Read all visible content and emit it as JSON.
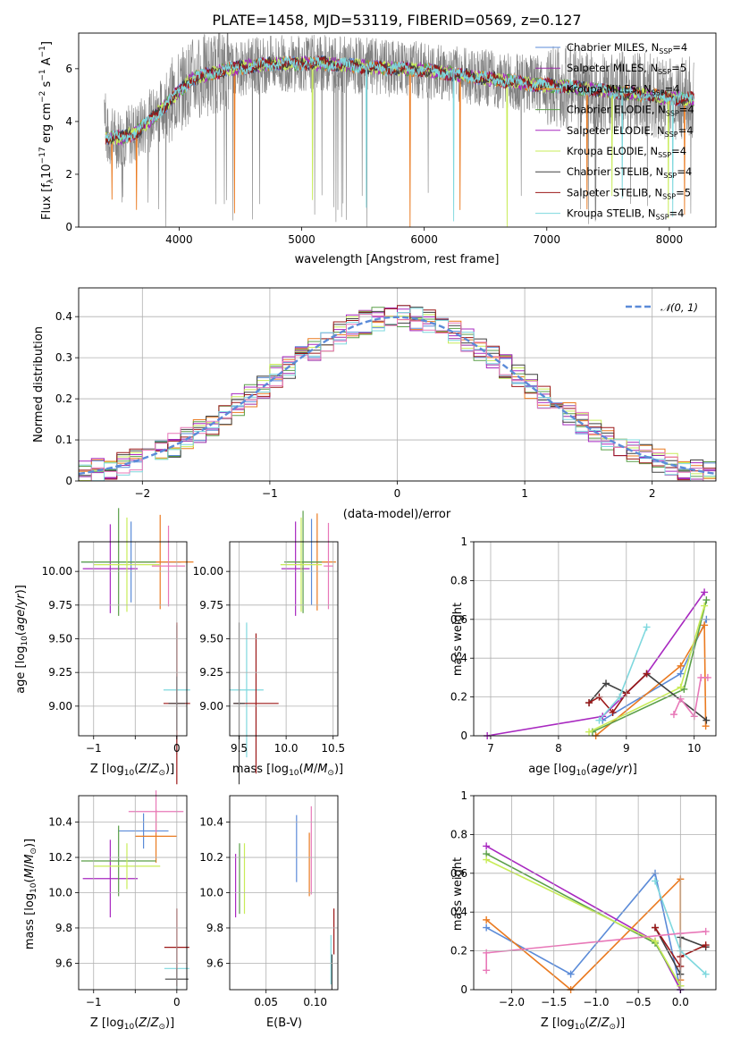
{
  "figure": {
    "title": "PLATE=1458, MJD=53119, FIBERID=0569, z=0.127"
  },
  "colors": {
    "chabrier_miles": "#5b8bd8",
    "salpeter_miles": "#9a2aa8",
    "kroupa_miles": "#ea7a20",
    "chabrier_elodie": "#5a9f48",
    "salpeter_elodie": "#a828c0",
    "kroupa_elodie": "#c8ec58",
    "chabrier_stelib": "#404040",
    "salpeter_stelib": "#9c1818",
    "kroupa_stelib": "#7ed8de",
    "pink": "#e878b8",
    "data": "#808080",
    "gaussian": "#5b8bd8",
    "grid": "#b0b0b0"
  },
  "legend_spectrum": [
    {
      "text": "Chabrier MILES, N",
      "sub": "SSP",
      "tail": "=4"
    },
    {
      "text": "Salpeter MILES, N",
      "sub": "SSP",
      "tail": "=5"
    },
    {
      "text": "Kroupa MILES, N",
      "sub": "SSP",
      "tail": "=4"
    },
    {
      "text": "Chabrier ELODIE, N",
      "sub": "SSP",
      "tail": "=4"
    },
    {
      "text": "Salpeter ELODIE, N",
      "sub": "SSP",
      "tail": "=4"
    },
    {
      "text": "Kroupa ELODIE, N",
      "sub": "SSP",
      "tail": "=4"
    },
    {
      "text": "Chabrier STELIB, N",
      "sub": "SSP",
      "tail": "=4"
    },
    {
      "text": "Salpeter STELIB, N",
      "sub": "SSP",
      "tail": "=5"
    },
    {
      "text": "Kroupa STELIB, N",
      "sub": "SSP",
      "tail": "=4"
    }
  ],
  "legend_hist": "𝒩(0, 1)",
  "chart_data": [
    {
      "id": "spectrum",
      "type": "line",
      "xlabel": "wavelength [Angstrom, rest frame]",
      "ylabel": "Flux [fλ10⁻¹⁷ erg cm⁻² s⁻¹ A⁻¹]",
      "xlim": [
        3180,
        8380
      ],
      "ylim": [
        0,
        7.35
      ],
      "xticks": [
        4000,
        5000,
        6000,
        7000,
        8000
      ],
      "yticks": [
        0,
        2,
        4,
        6
      ],
      "continuum": [
        [
          3400,
          3.4
        ],
        [
          3550,
          3.4
        ],
        [
          3650,
          3.6
        ],
        [
          3800,
          4.2
        ],
        [
          3950,
          4.9
        ],
        [
          4100,
          5.6
        ],
        [
          4400,
          6.0
        ],
        [
          4800,
          6.2
        ],
        [
          5200,
          6.2
        ],
        [
          5600,
          6.05
        ],
        [
          6000,
          5.95
        ],
        [
          6400,
          5.7
        ],
        [
          6800,
          5.45
        ],
        [
          7200,
          5.3
        ],
        [
          7600,
          5.1
        ],
        [
          8000,
          4.9
        ],
        [
          8200,
          4.85
        ]
      ],
      "grid": false
    },
    {
      "id": "residual_hist",
      "type": "line",
      "xlabel": "(data-model)/error",
      "ylabel": "Normed distribution",
      "xlim": [
        -2.5,
        2.5
      ],
      "ylim": [
        0,
        0.47
      ],
      "xticks": [
        -2,
        -1,
        0,
        1,
        2
      ],
      "yticks": [
        0.0,
        0.1,
        0.2,
        0.3,
        0.4
      ],
      "bin_width": 0.1,
      "gaussian": {
        "mean": 0,
        "sigma": 1,
        "style": "dashed"
      },
      "grid": true
    },
    {
      "id": "age_vs_Z",
      "type": "scatter",
      "xlabel": "Z [log₁₀(Z/Z⊙)]",
      "ylabel": "age  [log₁₀(age/yr)]",
      "xlim": [
        -1.18,
        0.12
      ],
      "ylim": [
        8.78,
        10.22
      ],
      "xticks": [
        -1,
        -0.5,
        0
      ],
      "xticklabels": [
        "−1",
        "",
        "0"
      ],
      "yticks": [
        9.0,
        9.25,
        9.5,
        9.75,
        10.0
      ],
      "yticklabels": [
        "9.00",
        "9.25",
        "9.50",
        "9.75",
        "10.00"
      ],
      "points": [
        {
          "x": -0.55,
          "y": 10.07,
          "xerr": 0.6,
          "yerr": 0.3,
          "color": "chabrier_miles"
        },
        {
          "x": -0.8,
          "y": 10.02,
          "xerr": 0.33,
          "yerr": 0.33,
          "color": "salpeter_elodie"
        },
        {
          "x": -0.2,
          "y": 10.07,
          "xerr": 0.4,
          "yerr": 0.35,
          "color": "kroupa_miles"
        },
        {
          "x": -0.7,
          "y": 10.07,
          "xerr": 0.45,
          "yerr": 0.4,
          "color": "chabrier_elodie"
        },
        {
          "x": -0.6,
          "y": 10.05,
          "xerr": 0.4,
          "yerr": 0.35,
          "color": "kroupa_elodie"
        },
        {
          "x": -0.1,
          "y": 10.04,
          "xerr": 0.2,
          "yerr": 0.3,
          "color": "pink"
        },
        {
          "x": 0.0,
          "y": 9.12,
          "xerr": 0.16,
          "yerr": 0.48,
          "color": "kroupa_stelib"
        },
        {
          "x": 0.0,
          "y": 9.02,
          "xerr": 0.16,
          "yerr": 0.6,
          "color": "salpeter_stelib"
        },
        {
          "x": 0.0,
          "y": 9.02,
          "xerr": 0.1,
          "yerr": 0.2,
          "color": "chabrier_stelib"
        }
      ],
      "grid": true
    },
    {
      "id": "age_vs_mass",
      "type": "scatter",
      "xlabel": "mass [log₁₀(M/M⊙)]",
      "ylabel": "",
      "xlim": [
        9.4,
        10.55
      ],
      "ylim": [
        8.78,
        10.22
      ],
      "xticks": [
        9.5,
        10.0,
        10.5
      ],
      "xticklabels": [
        "9.5",
        "10.0",
        "10.5"
      ],
      "yticks": [
        9.0,
        9.25,
        9.5,
        9.75,
        10.0
      ],
      "yticklabels": [
        "9.00",
        "9.25",
        "9.50",
        "9.75",
        "10.00"
      ],
      "points": [
        {
          "x": 10.27,
          "y": 10.07,
          "xerr": 0.18,
          "yerr": 0.32,
          "color": "chabrier_miles"
        },
        {
          "x": 10.1,
          "y": 10.02,
          "xerr": 0.15,
          "yerr": 0.35,
          "color": "salpeter_elodie"
        },
        {
          "x": 10.33,
          "y": 10.07,
          "xerr": 0.2,
          "yerr": 0.36,
          "color": "kroupa_miles"
        },
        {
          "x": 10.18,
          "y": 10.07,
          "xerr": 0.2,
          "yerr": 0.38,
          "color": "chabrier_elodie"
        },
        {
          "x": 10.16,
          "y": 10.05,
          "xerr": 0.22,
          "yerr": 0.35,
          "color": "kroupa_elodie"
        },
        {
          "x": 10.45,
          "y": 10.04,
          "xerr": 0.05,
          "yerr": 0.32,
          "color": "pink"
        },
        {
          "x": 9.58,
          "y": 9.12,
          "xerr": 0.18,
          "yerr": 0.5,
          "color": "kroupa_stelib"
        },
        {
          "x": 9.68,
          "y": 9.02,
          "xerr": 0.24,
          "yerr": 0.52,
          "color": "salpeter_stelib"
        },
        {
          "x": 9.5,
          "y": 9.02,
          "xerr": 0.06,
          "yerr": 0.6,
          "color": "chabrier_stelib"
        }
      ],
      "grid": true
    },
    {
      "id": "mass_weight_vs_age",
      "type": "line",
      "xlabel": "age  [log₁₀(age/yr)]",
      "ylabel": "mass weight",
      "xlim": [
        6.75,
        10.32
      ],
      "ylim": [
        0,
        1.0
      ],
      "xticks": [
        7,
        8,
        9,
        10
      ],
      "yticks": [
        0.0,
        0.2,
        0.4,
        0.6,
        0.8,
        1.0
      ],
      "series": [
        {
          "color": "chabrier_miles",
          "x": [
            8.65,
            9.8,
            10.18
          ],
          "y": [
            0.08,
            0.32,
            0.6
          ]
        },
        {
          "color": "salpeter_elodie",
          "x": [
            6.95,
            8.65,
            9.3,
            10.15
          ],
          "y": [
            0.0,
            0.1,
            0.32,
            0.74
          ]
        },
        {
          "color": "kroupa_miles",
          "x": [
            8.55,
            9.8,
            10.15,
            10.17
          ],
          "y": [
            0.0,
            0.36,
            0.57,
            0.05
          ]
        },
        {
          "color": "chabrier_elodie",
          "x": [
            8.5,
            9.85,
            10.18
          ],
          "y": [
            0.02,
            0.24,
            0.7
          ]
        },
        {
          "color": "kroupa_elodie",
          "x": [
            8.45,
            9.8,
            10.15
          ],
          "y": [
            0.02,
            0.25,
            0.67
          ]
        },
        {
          "color": "chabrier_stelib",
          "x": [
            8.45,
            8.7,
            9.0,
            9.3,
            10.18
          ],
          "y": [
            0.17,
            0.27,
            0.22,
            0.32,
            0.08
          ]
        },
        {
          "color": "salpeter_stelib",
          "x": [
            8.45,
            8.6,
            8.8,
            9.0,
            9.3
          ],
          "y": [
            0.17,
            0.2,
            0.12,
            0.22,
            0.32
          ]
        },
        {
          "color": "kroupa_stelib",
          "x": [
            8.6,
            8.9,
            9.3
          ],
          "y": [
            0.08,
            0.2,
            0.56
          ]
        },
        {
          "color": "pink",
          "x": [
            9.7,
            9.8,
            10.0,
            10.1,
            10.2
          ],
          "y": [
            0.11,
            0.19,
            0.1,
            0.3,
            0.3
          ]
        }
      ],
      "grid": true
    },
    {
      "id": "mass_vs_Z",
      "type": "scatter",
      "xlabel": "Z [log₁₀(Z/Z⊙)]",
      "ylabel": "mass [log₁₀(M/M⊙)]",
      "xlim": [
        -1.18,
        0.12
      ],
      "ylim": [
        9.45,
        10.55
      ],
      "xticks": [
        -1,
        -0.5,
        0
      ],
      "xticklabels": [
        "−1",
        "",
        "0"
      ],
      "yticks": [
        9.6,
        9.8,
        10.0,
        10.2,
        10.4
      ],
      "yticklabels": [
        "9.6",
        "9.8",
        "10.0",
        "10.2",
        "10.4"
      ],
      "points": [
        {
          "x": -0.4,
          "y": 10.35,
          "xerr": 0.3,
          "yerr": 0.1,
          "color": "chabrier_miles"
        },
        {
          "x": -0.8,
          "y": 10.08,
          "xerr": 0.33,
          "yerr": 0.22,
          "color": "salpeter_elodie"
        },
        {
          "x": -0.25,
          "y": 10.32,
          "xerr": 0.25,
          "yerr": 0.15,
          "color": "kroupa_miles"
        },
        {
          "x": -0.7,
          "y": 10.18,
          "xerr": 0.45,
          "yerr": 0.2,
          "color": "chabrier_elodie"
        },
        {
          "x": -0.6,
          "y": 10.15,
          "xerr": 0.4,
          "yerr": 0.13,
          "color": "kroupa_elodie"
        },
        {
          "x": -0.25,
          "y": 10.46,
          "xerr": 0.33,
          "yerr": 0.12,
          "color": "pink"
        },
        {
          "x": 0.0,
          "y": 9.57,
          "xerr": 0.15,
          "yerr": 0.12,
          "color": "kroupa_stelib"
        },
        {
          "x": 0.0,
          "y": 9.69,
          "xerr": 0.15,
          "yerr": 0.22,
          "color": "salpeter_stelib"
        },
        {
          "x": 0.0,
          "y": 9.51,
          "xerr": 0.14,
          "yerr": 0.06,
          "color": "chabrier_stelib"
        }
      ],
      "grid": true
    },
    {
      "id": "mass_vs_ebv",
      "type": "scatter",
      "xlabel": "E(B-V)",
      "ylabel": "",
      "xlim": [
        0.013,
        0.123
      ],
      "ylim": [
        9.45,
        10.55
      ],
      "xticks": [
        0.05,
        0.1
      ],
      "xticklabels": [
        "0.05",
        "0.10"
      ],
      "yticks": [
        9.6,
        9.8,
        10.0,
        10.2,
        10.4
      ],
      "yticklabels": [
        "9.6",
        "9.8",
        "10.0",
        "10.2",
        "10.4"
      ],
      "points": [
        {
          "x": 0.081,
          "y": 10.25,
          "xerr": 0,
          "yerr": 0.19,
          "color": "chabrier_miles"
        },
        {
          "x": 0.019,
          "y": 10.04,
          "xerr": 0,
          "yerr": 0.18,
          "color": "salpeter_elodie"
        },
        {
          "x": 0.094,
          "y": 10.16,
          "xerr": 0,
          "yerr": 0.18,
          "color": "kroupa_miles"
        },
        {
          "x": 0.023,
          "y": 10.08,
          "xerr": 0,
          "yerr": 0.2,
          "color": "chabrier_elodie"
        },
        {
          "x": 0.028,
          "y": 10.08,
          "xerr": 0,
          "yerr": 0.2,
          "color": "kroupa_elodie"
        },
        {
          "x": 0.096,
          "y": 10.24,
          "xerr": 0,
          "yerr": 0.25,
          "color": "pink"
        },
        {
          "x": 0.116,
          "y": 9.62,
          "xerr": 0,
          "yerr": 0.14,
          "color": "kroupa_stelib"
        },
        {
          "x": 0.119,
          "y": 9.78,
          "xerr": 0,
          "yerr": 0.13,
          "color": "salpeter_stelib"
        },
        {
          "x": 0.117,
          "y": 9.55,
          "xerr": 0,
          "yerr": 0.1,
          "color": "chabrier_stelib"
        }
      ],
      "grid": true
    },
    {
      "id": "mass_weight_vs_Z",
      "type": "line",
      "xlabel": "Z [log₁₀(Z/Z⊙)]",
      "ylabel": "mass weight",
      "xlim": [
        -2.45,
        0.42
      ],
      "ylim": [
        0,
        1.0
      ],
      "xticks": [
        -2.0,
        -1.5,
        -1.0,
        -0.5,
        0.0
      ],
      "xticklabels": [
        "−2.0",
        "−1.5",
        "−1.0",
        "−0.5",
        "0.0"
      ],
      "yticks": [
        0.0,
        0.2,
        0.4,
        0.6,
        0.8,
        1.0
      ],
      "series": [
        {
          "color": "chabrier_miles",
          "x": [
            -2.3,
            -1.3,
            -0.3,
            0.0
          ],
          "y": [
            0.32,
            0.08,
            0.6,
            0.0
          ]
        },
        {
          "color": "salpeter_elodie",
          "x": [
            -2.3,
            -0.3,
            0.0
          ],
          "y": [
            0.74,
            0.25,
            0.0
          ]
        },
        {
          "color": "kroupa_miles",
          "x": [
            -2.3,
            -1.3,
            0.0,
            0.0
          ],
          "y": [
            0.36,
            0.0,
            0.57,
            0.05
          ]
        },
        {
          "color": "chabrier_elodie",
          "x": [
            -2.3,
            -0.3,
            0.0
          ],
          "y": [
            0.7,
            0.24,
            0.02
          ]
        },
        {
          "color": "kroupa_elodie",
          "x": [
            -2.3,
            -0.3,
            0.0
          ],
          "y": [
            0.67,
            0.25,
            0.02
          ]
        },
        {
          "color": "chabrier_stelib",
          "x": [
            -0.3,
            0.0,
            0.0,
            0.3
          ],
          "y": [
            0.32,
            0.08,
            0.27,
            0.22
          ]
        },
        {
          "color": "salpeter_stelib",
          "x": [
            -0.3,
            0.0,
            0.0,
            0.3
          ],
          "y": [
            0.32,
            0.12,
            0.17,
            0.23
          ]
        },
        {
          "color": "kroupa_stelib",
          "x": [
            -0.3,
            0.0,
            0.3
          ],
          "y": [
            0.56,
            0.2,
            0.08
          ]
        },
        {
          "color": "pink",
          "x": [
            -2.3,
            -2.3,
            0.0,
            0.3
          ],
          "y": [
            0.1,
            0.19,
            0.29,
            0.3
          ]
        }
      ],
      "grid": true
    }
  ]
}
